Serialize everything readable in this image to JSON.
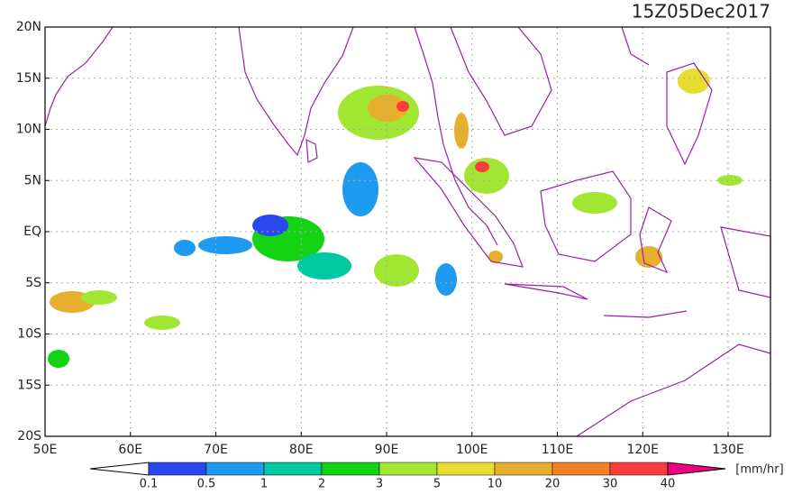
{
  "title": "15Z05Dec2017",
  "lat_labels": [
    "20N",
    "15N",
    "10N",
    "5N",
    "EQ",
    "5S",
    "10S",
    "15S",
    "20S"
  ],
  "lon_labels": [
    "50E",
    "60E",
    "70E",
    "80E",
    "90E",
    "100E",
    "110E",
    "120E",
    "130E"
  ],
  "colorbar": {
    "labels": [
      "0.1",
      "0.5",
      "1",
      "2",
      "3",
      "5",
      "10",
      "20",
      "30",
      "40"
    ],
    "colors": [
      "#2a48f0",
      "#1e9af0",
      "#00c8a0",
      "#14d214",
      "#a0e632",
      "#e6dc32",
      "#e6af2d",
      "#f08228",
      "#fa3c3c"
    ],
    "over_color": "#f00082",
    "unit": "[mm/hr]"
  }
}
